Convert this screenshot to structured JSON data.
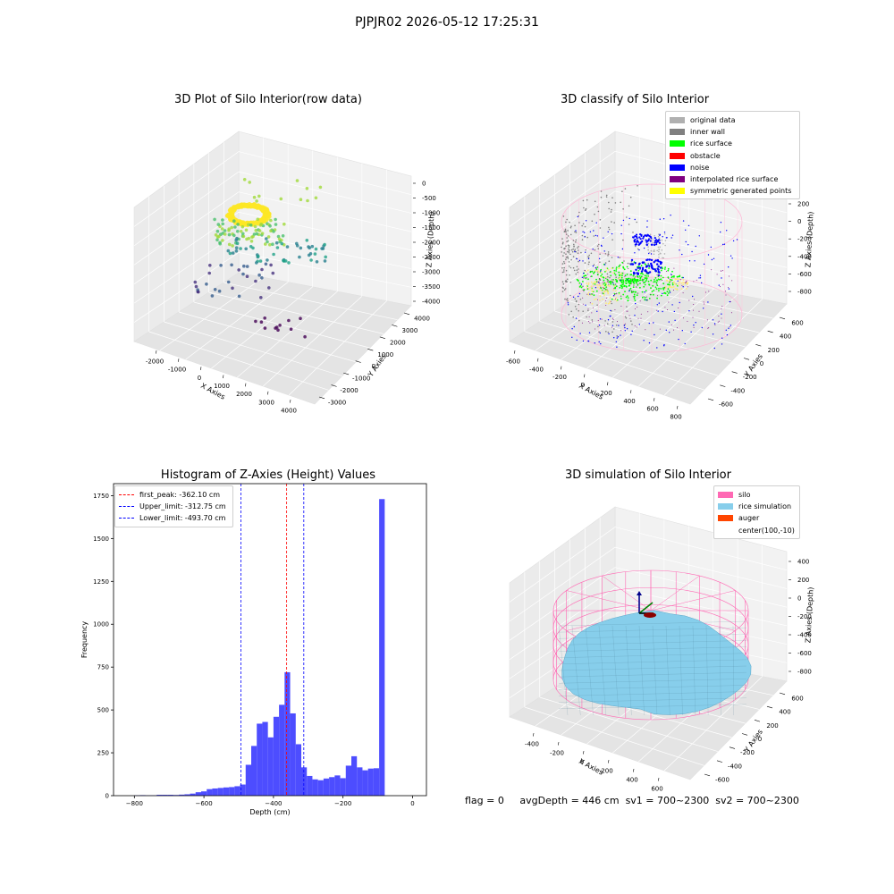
{
  "suptitle": "PJPJR02 2026-05-12 17:25:31",
  "footer": {
    "flag": "flag = 0",
    "avg": "avgDepth = 446 cm",
    "sv1": "sv1 = 700~2300",
    "sv2": "sv2 = 700~2300"
  },
  "chart_data": [
    {
      "type": "scatter",
      "title": "3D Plot of Silo Interior(row data)",
      "xlabel": "X Axies",
      "ylabel": "Y Axies",
      "zlabel": "Z Axies (Depth)",
      "x_ticks": [
        "-2000",
        "-1000",
        "0",
        "1000",
        "2000",
        "3000",
        "4000"
      ],
      "y_ticks": [
        "-3000",
        "-2000",
        "-1000",
        "0",
        "1000",
        "2000",
        "3000",
        "4000"
      ],
      "z_ticks": [
        "0",
        "-500",
        "-1000",
        "-1500",
        "-2000",
        "-2500",
        "-3000",
        "-3500",
        "-4000"
      ],
      "colormap": "viridis"
    },
    {
      "type": "scatter",
      "title": "3D classify of Silo Interior",
      "xlabel": "X Axies",
      "ylabel": "Y Axies",
      "zlabel": "Z Axies (Depth)",
      "x_ticks": [
        "-600",
        "-400",
        "-200",
        "0",
        "200",
        "400",
        "600",
        "800"
      ],
      "y_ticks": [
        "-600",
        "-400",
        "-200",
        "0",
        "200",
        "400",
        "600"
      ],
      "z_ticks": [
        "200",
        "0",
        "-200",
        "-400",
        "-600",
        "-800"
      ],
      "legend": [
        {
          "label": "original data",
          "color": "#b0b0b0"
        },
        {
          "label": "inner wall",
          "color": "#808080"
        },
        {
          "label": "rice surface",
          "color": "#00ff00"
        },
        {
          "label": "obstacle",
          "color": "#ff0000"
        },
        {
          "label": "noise",
          "color": "#0000ff"
        },
        {
          "label": "interpolated rice surface",
          "color": "#800080"
        },
        {
          "label": "symmetric generated points",
          "color": "#ffff00"
        }
      ]
    },
    {
      "type": "bar",
      "title": "Histogram of Z-Axies (Height) Values",
      "xlabel": "Depth (cm)",
      "ylabel": "Frequency",
      "xlim": [
        -860,
        40
      ],
      "ylim": [
        0,
        1820
      ],
      "x_ticks": [
        -800,
        -600,
        -400,
        -200,
        0
      ],
      "y_ticks": [
        0,
        250,
        500,
        750,
        1000,
        1250,
        1500,
        1750
      ],
      "bar_color": "#4d4dff",
      "bin_width": 16,
      "bin_start": -800,
      "values": [
        2,
        3,
        2,
        2,
        5,
        5,
        5,
        4,
        6,
        8,
        12,
        20,
        25,
        38,
        42,
        45,
        48,
        50,
        55,
        65,
        180,
        290,
        420,
        430,
        340,
        460,
        530,
        720,
        480,
        300,
        165,
        115,
        95,
        90,
        100,
        108,
        118,
        102,
        175,
        230,
        165,
        148,
        158,
        160,
        1730
      ],
      "vlines": [
        {
          "label": "first_peak: -362.10 cm",
          "x": -362.1,
          "color": "#ff0000"
        },
        {
          "label": "Upper_limit: -312.75 cm",
          "x": -312.75,
          "color": "#0000ff"
        },
        {
          "label": "Lower_limit: -493.70 cm",
          "x": -493.7,
          "color": "#0000ff"
        }
      ]
    },
    {
      "type": "scatter",
      "title": "3D simulation of Silo Interior",
      "xlabel": "X Axies",
      "ylabel": "Y Axies",
      "zlabel": "Z Axies (Depth)",
      "x_ticks": [
        "-400",
        "-200",
        "0",
        "200",
        "400",
        "600"
      ],
      "y_ticks": [
        "-600",
        "-400",
        "-200",
        "0",
        "200",
        "400",
        "600"
      ],
      "z_ticks": [
        "400",
        "200",
        "0",
        "-200",
        "-400",
        "-600",
        "-800"
      ],
      "legend": [
        {
          "label": "silo",
          "color": "#ff69b4"
        },
        {
          "label": "rice simulation",
          "color": "#87ceeb"
        },
        {
          "label": "auger",
          "color": "#ff4500"
        },
        {
          "label": "center(100,-10)",
          "color": ""
        }
      ]
    }
  ]
}
